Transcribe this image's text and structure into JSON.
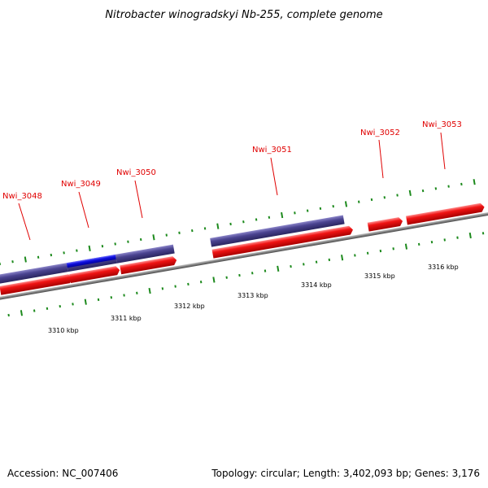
{
  "title": "Nitrobacter winogradskyi Nb-255, complete genome",
  "footer": {
    "accession": "Accession: NC_007406",
    "summary": "Topology: circular; Length: 3,402,093 bp; Genes: 3,176"
  },
  "colors": {
    "forward_gene": "#e31212",
    "reverse_gene": "#4a4390",
    "highlight_gene": "#1010e0",
    "label": "#e00000",
    "tick": "#1d8a1d",
    "backbone": "#808080"
  },
  "scale": {
    "labels": [
      "3310 kbp",
      "3311 kbp",
      "3312 kbp",
      "3313 kbp",
      "3314 kbp",
      "3315 kbp",
      "3316 kbp"
    ]
  },
  "gene_labels": [
    "Nwi_3048",
    "Nwi_3049",
    "Nwi_3050",
    "Nwi_3051",
    "Nwi_3052",
    "Nwi_3053"
  ]
}
